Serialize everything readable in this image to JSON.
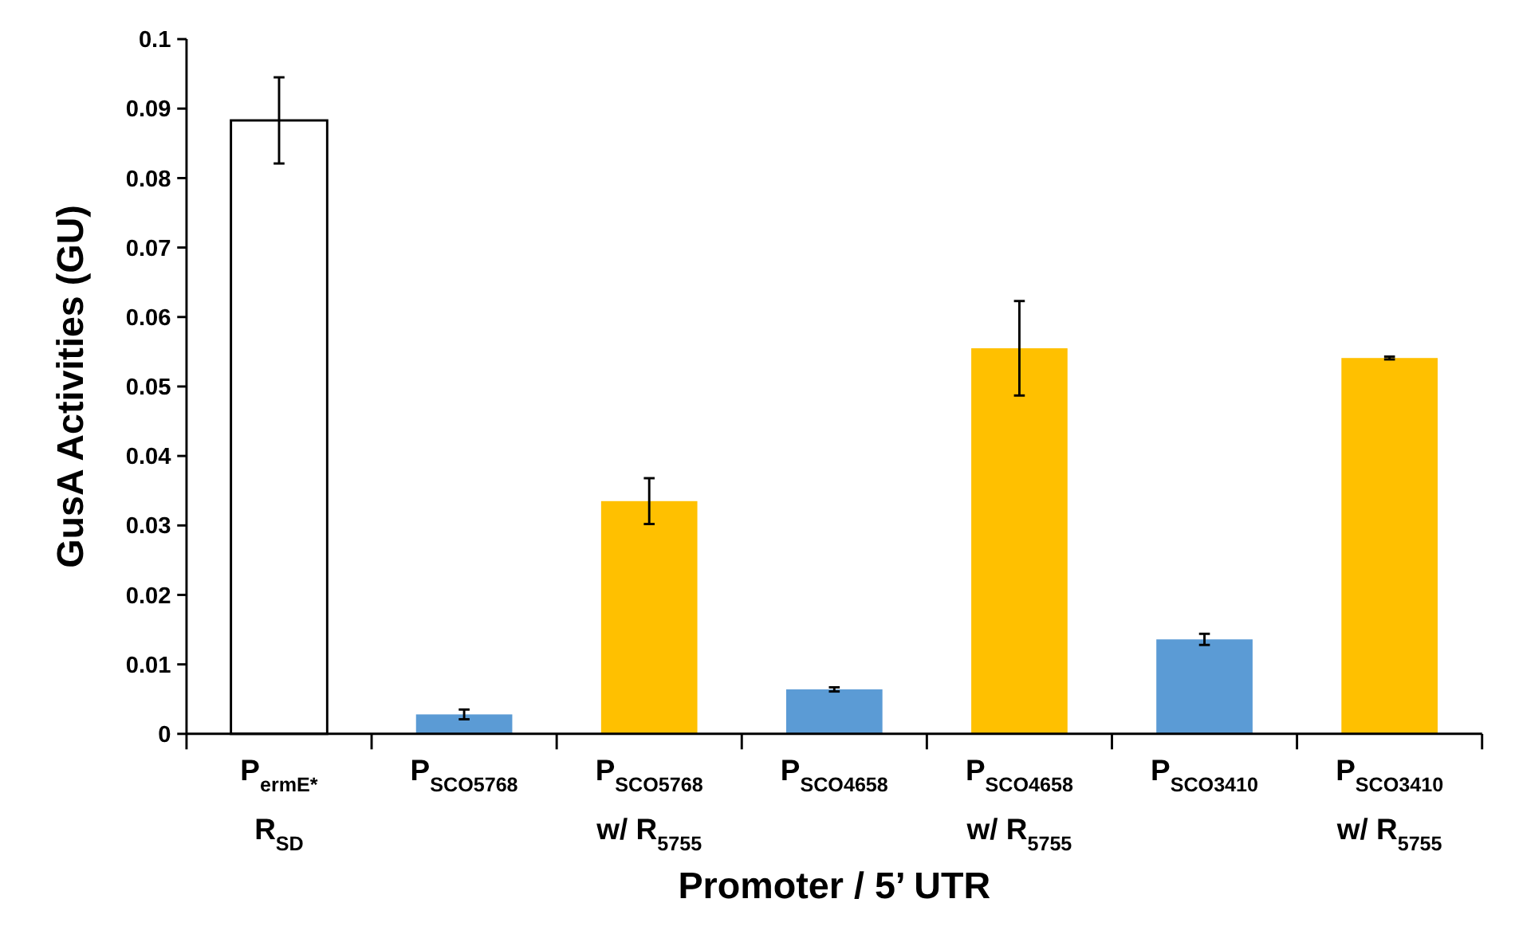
{
  "chart_data": {
    "type": "bar",
    "xlabel": "Promoter / 5’ UTR",
    "ylabel": "GusA Activities (GU)",
    "categories": [
      "P$_{ermE*}$\nR$_{SD}$",
      "P$_{SCO5768}$",
      "P$_{SCO5768}$\nw/ R$_{5755}$",
      "P$_{SCO4658}$",
      "P$_{SCO4658}$\nw/ R$_{5755}$",
      "P$_{SCO3410}$",
      "P$_{SCO3410}$\nw/ R$_{5755}$"
    ],
    "values": [
      0.0883,
      0.0028,
      0.0335,
      0.0064,
      0.0555,
      0.0136,
      0.0541
    ],
    "errors": [
      0.0062,
      0.0007,
      0.0033,
      0.0003,
      0.0068,
      0.0008,
      0.0002
    ],
    "colors": [
      "#ffffff",
      "#5b9bd5",
      "#ffc000",
      "#5b9bd5",
      "#ffc000",
      "#5b9bd5",
      "#ffc000"
    ],
    "ylim": [
      0,
      0.1
    ],
    "yticks": [
      0,
      0.01,
      0.02,
      0.03,
      0.04,
      0.05,
      0.06,
      0.07,
      0.08,
      0.09,
      0.1
    ],
    "grid": false
  }
}
